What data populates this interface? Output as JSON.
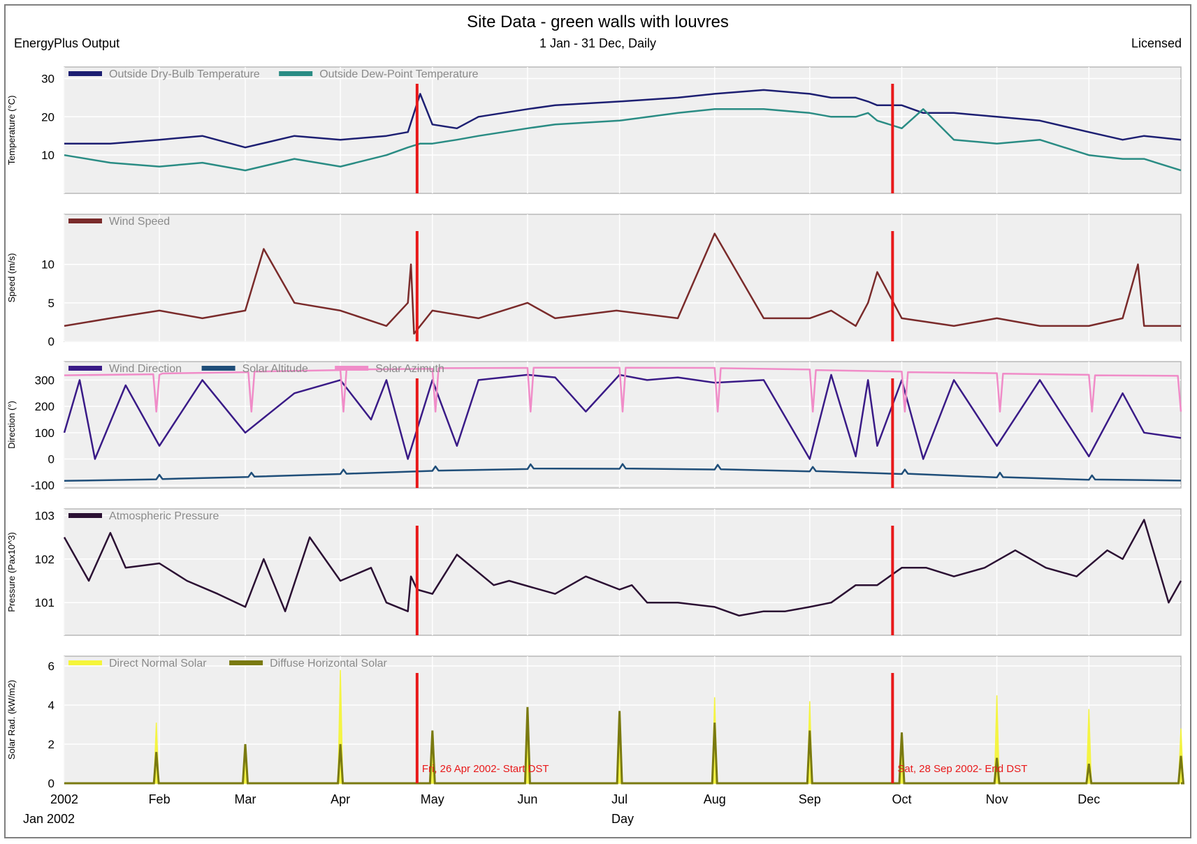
{
  "header": {
    "title": "Site Data - green walls with louvres",
    "subtitle": "1 Jan - 31 Dec, Daily",
    "left_note": "EnergyPlus Output",
    "right_note": "Licensed"
  },
  "colors": {
    "panel_bg": "#efefef",
    "grid": "#ffffff",
    "marker": "#e8191a",
    "dry_bulb": "#1d1f72",
    "dew_point": "#2a8c84",
    "wind_speed": "#7a2b2b",
    "wind_direction": "#3a1b87",
    "solar_altitude": "#1f4e79",
    "solar_azimuth": "#f08cc8",
    "pressure": "#2b1033",
    "direct_normal": "#f5f53a",
    "diffuse_horizontal": "#7a7a10"
  },
  "chart_data": [
    {
      "type": "line",
      "ylabel": "Temperature (°C)",
      "yticks": [
        10,
        20,
        30
      ],
      "ylim": [
        0,
        33
      ],
      "grid": true,
      "legend": "top-left",
      "series": [
        {
          "name": "Outside Dry-Bulb Temperature",
          "x": [
            0,
            15,
            31,
            45,
            59,
            75,
            90,
            105,
            112,
            116,
            120,
            128,
            135,
            151,
            160,
            181,
            200,
            212,
            228,
            243,
            250,
            258,
            262,
            265,
            273,
            280,
            290,
            304,
            318,
            334,
            345,
            352,
            364
          ],
          "values": [
            13,
            13,
            14,
            15,
            12,
            15,
            14,
            15,
            16,
            26,
            18,
            17,
            20,
            22,
            23,
            24,
            25,
            26,
            27,
            26,
            25,
            25,
            24,
            23,
            23,
            21,
            21,
            20,
            19,
            16,
            14,
            15,
            14
          ]
        },
        {
          "name": "Outside Dew-Point Temperature",
          "x": [
            0,
            15,
            31,
            45,
            59,
            75,
            90,
            105,
            112,
            116,
            120,
            128,
            135,
            151,
            160,
            181,
            200,
            212,
            228,
            243,
            250,
            258,
            262,
            265,
            273,
            280,
            290,
            304,
            318,
            334,
            345,
            352,
            364
          ],
          "values": [
            10,
            8,
            7,
            8,
            6,
            9,
            7,
            10,
            12,
            13,
            13,
            14,
            15,
            17,
            18,
            19,
            21,
            22,
            22,
            21,
            20,
            20,
            21,
            19,
            17,
            22,
            14,
            13,
            14,
            10,
            9,
            9,
            6
          ]
        }
      ]
    },
    {
      "type": "line",
      "ylabel": "Speed (m/s)",
      "yticks": [
        0,
        5,
        10
      ],
      "ylim": [
        0,
        16.5
      ],
      "grid": true,
      "legend": "top-left",
      "series": [
        {
          "name": "Wind Speed",
          "x": [
            0,
            15,
            31,
            45,
            59,
            65,
            75,
            90,
            105,
            112,
            113,
            114,
            120,
            135,
            151,
            160,
            180,
            200,
            212,
            228,
            243,
            250,
            258,
            262,
            265,
            273,
            290,
            304,
            318,
            334,
            345,
            350,
            352,
            364
          ],
          "values": [
            2,
            3,
            4,
            3,
            4,
            12,
            5,
            4,
            2,
            5,
            10,
            1,
            4,
            3,
            5,
            3,
            4,
            3,
            14,
            3,
            3,
            4,
            2,
            5,
            9,
            3,
            2,
            3,
            2,
            2,
            3,
            10,
            2,
            2
          ]
        }
      ]
    },
    {
      "type": "line",
      "ylabel": "Direction (°)",
      "yticks": [
        -100,
        0,
        100,
        200,
        300
      ],
      "ylim": [
        -110,
        370
      ],
      "grid": true,
      "legend": "top-left",
      "series": [
        {
          "name": "Wind Direction",
          "x": [
            0,
            5,
            10,
            20,
            31,
            45,
            59,
            75,
            90,
            100,
            105,
            112,
            120,
            128,
            135,
            151,
            160,
            170,
            181,
            190,
            200,
            212,
            228,
            243,
            250,
            258,
            262,
            265,
            273,
            280,
            290,
            304,
            318,
            334,
            345,
            352,
            364
          ],
          "values": [
            100,
            300,
            0,
            280,
            50,
            300,
            100,
            250,
            300,
            150,
            300,
            0,
            300,
            50,
            300,
            320,
            310,
            180,
            320,
            300,
            310,
            290,
            300,
            0,
            320,
            10,
            300,
            50,
            300,
            0,
            300,
            50,
            300,
            10,
            250,
            100,
            80
          ]
        },
        {
          "name": "Solar Altitude",
          "x": [
            0,
            30,
            31,
            32,
            60,
            61,
            62,
            90,
            91,
            92,
            120,
            121,
            122,
            151,
            152,
            153,
            181,
            182,
            183,
            212,
            213,
            214,
            243,
            244,
            245,
            273,
            274,
            275,
            304,
            305,
            306,
            334,
            335,
            336,
            364
          ],
          "values": [
            -83,
            -77,
            -60,
            -76,
            -68,
            -52,
            -67,
            -57,
            -40,
            -56,
            -45,
            -28,
            -44,
            -38,
            -20,
            -36,
            -37,
            -19,
            -36,
            -40,
            -22,
            -39,
            -47,
            -30,
            -46,
            -57,
            -40,
            -56,
            -70,
            -52,
            -69,
            -79,
            -62,
            -78,
            -82
          ]
        },
        {
          "name": "Solar Azimuth",
          "x": [
            0,
            29,
            30,
            31,
            32,
            60,
            61,
            62,
            90,
            91,
            92,
            120,
            121,
            122,
            151,
            152,
            153,
            181,
            182,
            183,
            212,
            213,
            214,
            243,
            244,
            245,
            273,
            274,
            275,
            304,
            305,
            306,
            334,
            335,
            336,
            363,
            364
          ],
          "values": [
            318,
            322,
            180,
            320,
            325,
            330,
            180,
            332,
            338,
            180,
            340,
            343,
            180,
            345,
            346,
            180,
            347,
            347,
            180,
            347,
            346,
            180,
            345,
            340,
            180,
            338,
            332,
            180,
            330,
            326,
            180,
            324,
            320,
            180,
            318,
            316,
            180
          ]
        }
      ]
    },
    {
      "type": "line",
      "ylabel": "Pressure (Pax10^3)",
      "yticks": [
        101,
        102,
        103
      ],
      "ylim": [
        100.25,
        103.15
      ],
      "grid": true,
      "legend": "top-left",
      "series": [
        {
          "name": "Atmospheric Pressure",
          "x": [
            0,
            8,
            15,
            20,
            31,
            40,
            50,
            59,
            65,
            72,
            80,
            90,
            100,
            105,
            112,
            113,
            115,
            120,
            128,
            140,
            145,
            160,
            170,
            181,
            185,
            190,
            200,
            212,
            220,
            228,
            235,
            243,
            250,
            258,
            265,
            273,
            281,
            290,
            300,
            310,
            320,
            330,
            340,
            345,
            352,
            360,
            364
          ],
          "values": [
            102.5,
            101.5,
            102.6,
            101.8,
            101.9,
            101.5,
            101.2,
            100.9,
            102,
            100.8,
            102.5,
            101.5,
            101.8,
            101.0,
            100.8,
            101.6,
            101.3,
            101.2,
            102.1,
            101.4,
            101.5,
            101.2,
            101.6,
            101.3,
            101.4,
            101.0,
            101.0,
            100.9,
            100.7,
            100.8,
            100.8,
            100.9,
            101.0,
            101.4,
            101.4,
            101.8,
            101.8,
            101.6,
            101.8,
            102.2,
            101.8,
            101.6,
            102.2,
            102.0,
            102.9,
            101.0,
            101.5
          ]
        }
      ]
    },
    {
      "type": "area",
      "ylabel": "Solar Rad. (kW/m2)",
      "yticks": [
        0,
        2,
        4,
        6
      ],
      "ylim": [
        0,
        6.5
      ],
      "grid": true,
      "legend": "top-left",
      "series": [
        {
          "name": "Direct Normal Solar",
          "peaks": [
            [
              30,
              3.1
            ],
            [
              59,
              1.9
            ],
            [
              90,
              5.8
            ],
            [
              120,
              2.6
            ],
            [
              151,
              3.8
            ],
            [
              181,
              3.6
            ],
            [
              212,
              4.4
            ],
            [
              243,
              4.2
            ],
            [
              273,
              2.4
            ],
            [
              304,
              4.5
            ],
            [
              334,
              3.8
            ],
            [
              364,
              2.8
            ]
          ]
        },
        {
          "name": "Diffuse Horizontal Solar",
          "peaks": [
            [
              30,
              1.6
            ],
            [
              59,
              2.0
            ],
            [
              90,
              2.0
            ],
            [
              120,
              2.7
            ],
            [
              151,
              3.9
            ],
            [
              181,
              3.7
            ],
            [
              212,
              3.1
            ],
            [
              243,
              2.7
            ],
            [
              273,
              2.6
            ],
            [
              304,
              1.3
            ],
            [
              334,
              1.0
            ],
            [
              364,
              1.4
            ]
          ]
        }
      ]
    }
  ],
  "markers": [
    {
      "day": 115,
      "label": "Fri, 26 Apr 2002- Start DST"
    },
    {
      "day": 270,
      "label": "Sat, 28 Sep 2002- End DST"
    }
  ],
  "x_axis": {
    "label": "Day",
    "sub_label": "Jan  2002",
    "ticks": [
      {
        "day": 0,
        "label": "2002"
      },
      {
        "day": 31,
        "label": "Feb"
      },
      {
        "day": 59,
        "label": "Mar"
      },
      {
        "day": 90,
        "label": "Apr"
      },
      {
        "day": 120,
        "label": "May"
      },
      {
        "day": 151,
        "label": "Jun"
      },
      {
        "day": 181,
        "label": "Jul"
      },
      {
        "day": 212,
        "label": "Aug"
      },
      {
        "day": 243,
        "label": "Sep"
      },
      {
        "day": 273,
        "label": "Oct"
      },
      {
        "day": 304,
        "label": "Nov"
      },
      {
        "day": 334,
        "label": "Dec"
      }
    ]
  }
}
